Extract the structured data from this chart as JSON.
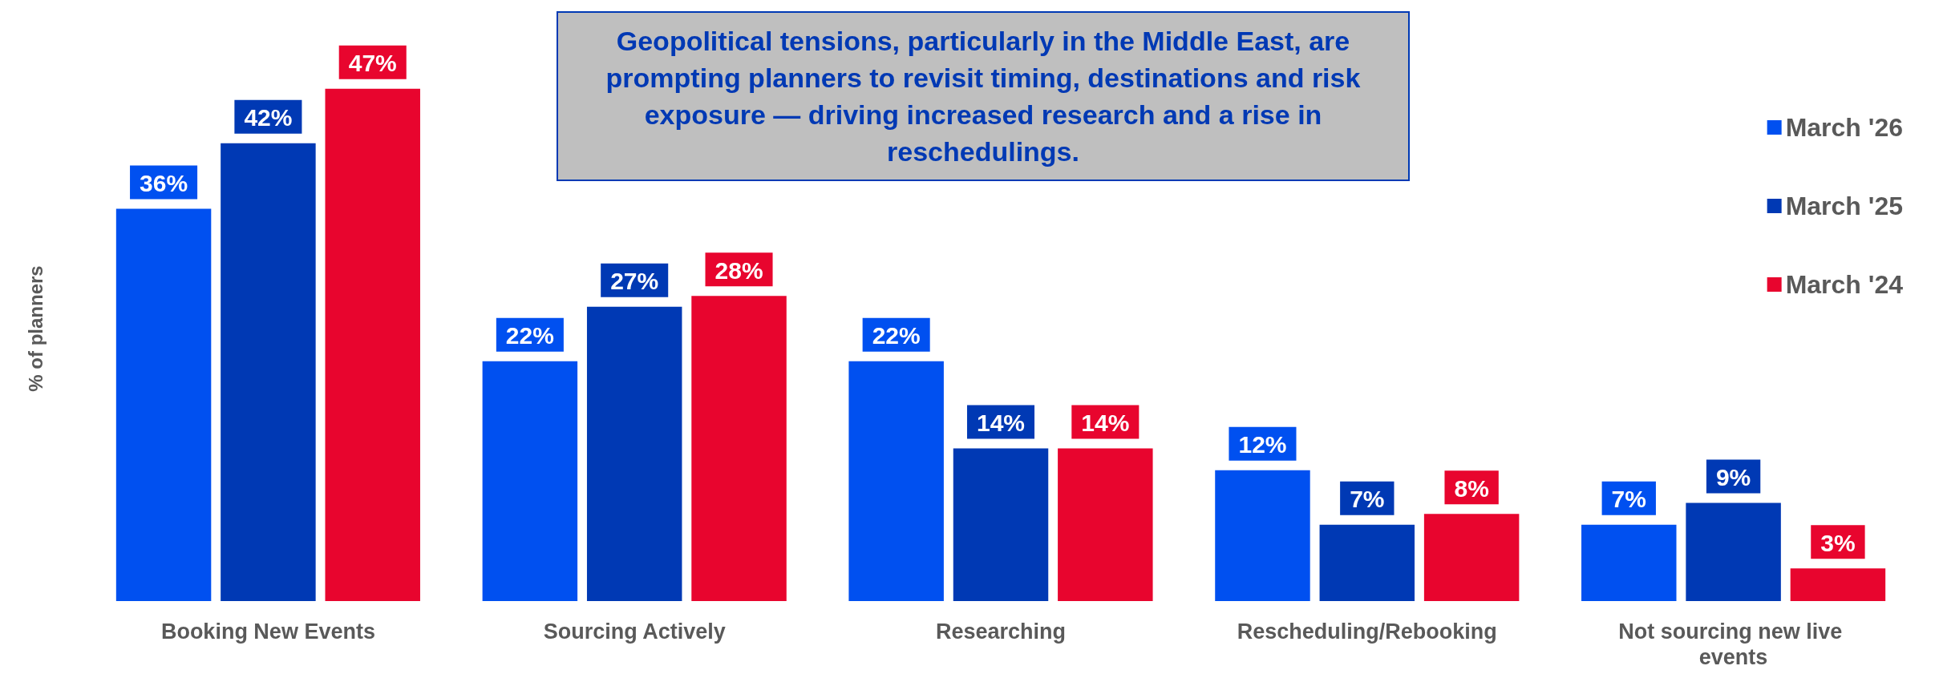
{
  "chart_data": {
    "type": "bar",
    "ylabel": "% of planners",
    "categories": [
      "Booking New Events",
      "Sourcing Actively",
      "Researching",
      "Rescheduling/Rebooking",
      "Not sourcing new live events"
    ],
    "series": [
      {
        "name": "March '26",
        "color": "#0050f0",
        "values": [
          36,
          22,
          22,
          12,
          7
        ],
        "value_labels": [
          "36%",
          "22%",
          "22%",
          "12%",
          "7%"
        ]
      },
      {
        "name": "March '25",
        "color": "#0039b4",
        "values": [
          42,
          27,
          14,
          7,
          9
        ],
        "value_labels": [
          "42%",
          "27%",
          "14%",
          "7%",
          "9%"
        ]
      },
      {
        "name": "March '24",
        "color": "#e8052e",
        "values": [
          47,
          28,
          14,
          8,
          3
        ],
        "value_labels": [
          "47%",
          "28%",
          "14%",
          "8%",
          "3%"
        ]
      }
    ],
    "annotations": [
      "Geopolitical tensions, particularly in the Middle East, are prompting planners to revisit timing, destinations and risk exposure — driving increased research and a rise in reschedulings."
    ],
    "legend": "right",
    "grid": false,
    "tick_labels": "x"
  }
}
